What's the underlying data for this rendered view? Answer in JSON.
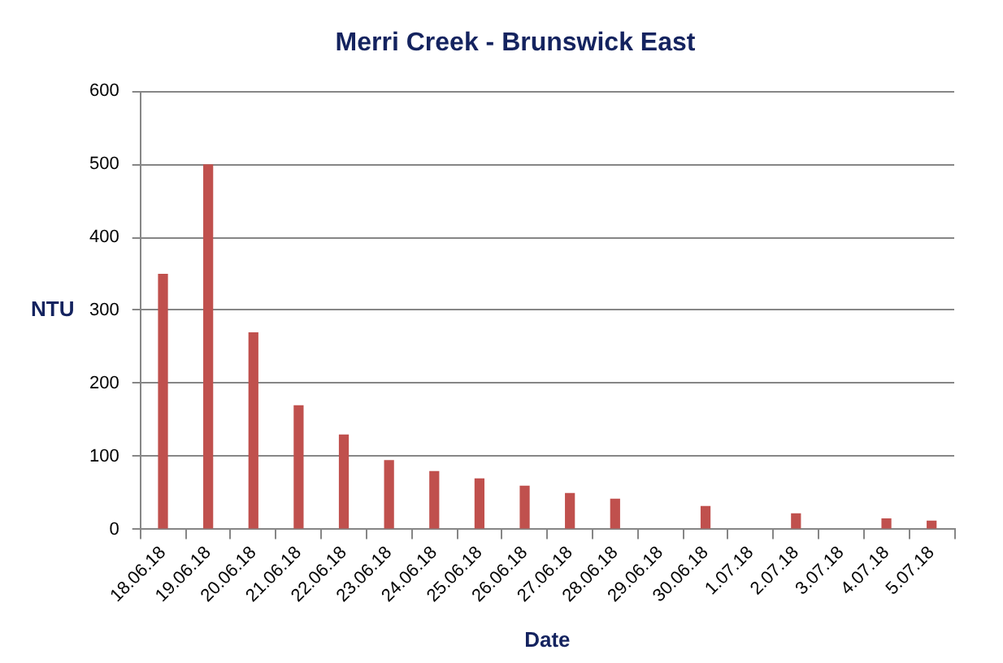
{
  "chart_data": {
    "type": "bar",
    "title": "Merri Creek - Brunswick East",
    "xlabel": "Date",
    "ylabel": "NTU",
    "categories": [
      "18.06.18",
      "19.06.18",
      "20.06.18",
      "21.06.18",
      "22.06.18",
      "23.06.18",
      "24.06.18",
      "25.06.18",
      "26.06.18",
      "27.06.18",
      "28.06.18",
      "29.06.18",
      "30.06.18",
      "1.07.18",
      "2.07.18",
      "3.07.18",
      "4.07.18",
      "5.07.18"
    ],
    "values": [
      350,
      500,
      270,
      170,
      130,
      95,
      80,
      70,
      60,
      50,
      42,
      null,
      32,
      null,
      22,
      null,
      15,
      12
    ],
    "color": "#c0504d",
    "ylim": [
      0,
      600
    ],
    "yticks": [
      0,
      100,
      200,
      300,
      400,
      500,
      600
    ],
    "grid": "y"
  }
}
